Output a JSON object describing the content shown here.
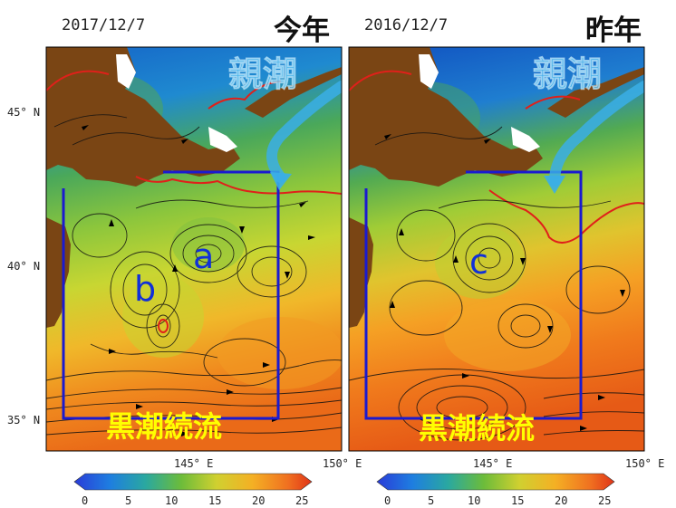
{
  "left_panel": {
    "date": "2017/12/7",
    "year_label": "今年",
    "oyashio_label": "親潮",
    "kuroshio_label": "黒潮続流",
    "eddy_labels": [
      "a",
      "b"
    ]
  },
  "right_panel": {
    "date": "2016/12/7",
    "year_label": "昨年",
    "oyashio_label": "親潮",
    "kuroshio_label": "黒潮続流",
    "eddy_labels": [
      "c"
    ]
  },
  "lat_ticks": [
    "45° N",
    "40° N",
    "35° N"
  ],
  "lon_ticks": [
    "145° E",
    "150° E"
  ],
  "colorbar_ticks": [
    "0",
    "5",
    "10",
    "15",
    "20",
    "25"
  ],
  "colors": {
    "land": "#7a4514",
    "box": "#1a1ad0",
    "kuroshio_text": "#ffff00",
    "oyashio": "#41b8f0",
    "eddy_label": "#1030d8",
    "front": "#e0201a"
  }
}
